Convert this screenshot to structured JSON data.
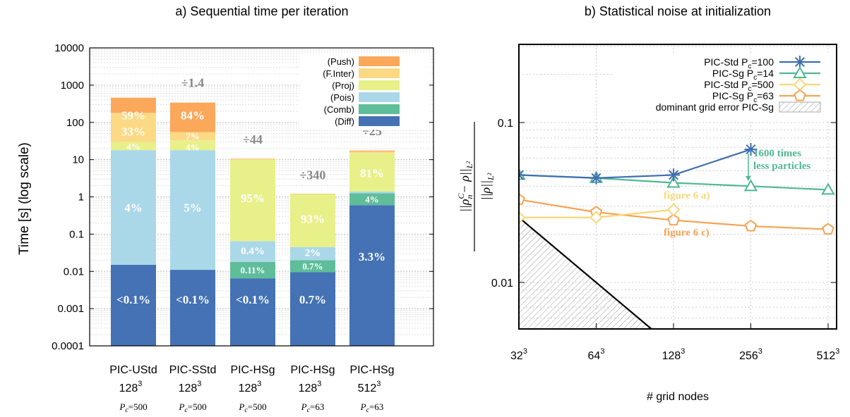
{
  "chart_data": [
    {
      "panel": "a",
      "type": "bar",
      "stacked": true,
      "title": "a) Sequential time per iteration",
      "ylabel": "Time [s] (log scale)",
      "yscale": "log",
      "ylim": [
        0.0001,
        10000
      ],
      "yticks": [
        "0.0001",
        "0.001",
        "0.01",
        "0.1",
        "1",
        "10",
        "100",
        "1000",
        "10000"
      ],
      "categories": [
        {
          "name": "PIC-UStd",
          "size": "128",
          "pc_prefix": "P",
          "pc_sub": "c",
          "pc_value": "=500"
        },
        {
          "name": "PIC-SStd",
          "size": "128",
          "pc_prefix": "P",
          "pc_sub": "c",
          "pc_value": "=500"
        },
        {
          "name": "PIC-HSg",
          "size": "128",
          "pc_prefix": "P",
          "pc_sub": "c",
          "pc_value": "=500"
        },
        {
          "name": "PIC-HSg",
          "size": "128",
          "pc_prefix": "P",
          "pc_sub": "c",
          "pc_value": "=63"
        },
        {
          "name": "PIC-HSg",
          "size": "512",
          "pc_prefix": "P",
          "pc_sub": "c",
          "pc_value": "=63"
        }
      ],
      "size_exponent": "3",
      "series": [
        {
          "name": "(Diff)",
          "color": "#4472b4",
          "tops": [
            0.015,
            0.011,
            0.0065,
            0.0095,
            0.6
          ]
        },
        {
          "name": "(Comb)",
          "color": "#5fbd9a",
          "tops": [
            0.015,
            0.011,
            0.018,
            0.02,
            1.25
          ]
        },
        {
          "name": "(Pois)",
          "color": "#abd8e8",
          "tops": [
            18,
            18,
            0.065,
            0.045,
            1.4
          ]
        },
        {
          "name": "(Proj)",
          "color": "#e8f08a",
          "tops": [
            30,
            33,
            10,
            1.2,
            15
          ]
        },
        {
          "name": "(F.Inter)",
          "color": "#fcd984",
          "tops": [
            180,
            55,
            10.3,
            1.2,
            16.5
          ]
        },
        {
          "name": "(Push)",
          "color": "#fba85a",
          "tops": [
            460,
            340,
            10.6,
            1.22,
            17.5
          ]
        }
      ],
      "segment_labels": [
        {
          "bar": 0,
          "text": "59%",
          "y": 150,
          "size": "large"
        },
        {
          "bar": 0,
          "text": "33%",
          "y": 55,
          "size": "large"
        },
        {
          "bar": 0,
          "text": "4%",
          "y": 23,
          "size": "small"
        },
        {
          "bar": 0,
          "text": "4%",
          "y": 0.5,
          "size": "large"
        },
        {
          "bar": 0,
          "text": "<0.1%",
          "y": 0.0017,
          "size": "large"
        },
        {
          "bar": 1,
          "text": "84%",
          "y": 150,
          "size": "large"
        },
        {
          "bar": 1,
          "text": "7%",
          "y": 43,
          "size": "small"
        },
        {
          "bar": 1,
          "text": "4%",
          "y": 22,
          "size": "small"
        },
        {
          "bar": 1,
          "text": "5%",
          "y": 0.5,
          "size": "large"
        },
        {
          "bar": 1,
          "text": "<0.1%",
          "y": 0.0017,
          "size": "large"
        },
        {
          "bar": 2,
          "text": "95%",
          "y": 0.9,
          "size": "large"
        },
        {
          "bar": 2,
          "text": "0.4%",
          "y": 0.036,
          "size": "medium"
        },
        {
          "bar": 2,
          "text": "0.11%",
          "y": 0.011,
          "size": "small"
        },
        {
          "bar": 2,
          "text": "<0.1%",
          "y": 0.0017,
          "size": "large"
        },
        {
          "bar": 3,
          "text": "93%",
          "y": 0.25,
          "size": "large"
        },
        {
          "bar": 3,
          "text": "2%",
          "y": 0.032,
          "size": "medium"
        },
        {
          "bar": 3,
          "text": "0.7%",
          "y": 0.014,
          "size": "small"
        },
        {
          "bar": 3,
          "text": "0.7%",
          "y": 0.0017,
          "size": "large"
        },
        {
          "bar": 4,
          "text": "81%",
          "y": 4.2,
          "size": "large"
        },
        {
          "bar": 4,
          "text": "4%",
          "y": 0.87,
          "size": "small"
        },
        {
          "bar": 4,
          "text": "3.3%",
          "y": 0.024,
          "size": "large"
        }
      ],
      "speedups": [
        {
          "bar": 1,
          "text": "÷1.4",
          "y": 900
        },
        {
          "bar": 2,
          "text": "÷44",
          "y": 27
        },
        {
          "bar": 3,
          "text": "÷340",
          "y": 3
        },
        {
          "bar": 4,
          "text": "÷25",
          "y": 45
        }
      ],
      "legend_position": "top-right",
      "grid": true
    },
    {
      "panel": "b",
      "type": "line",
      "title": "b) Statistical noise at initialization",
      "xlabel": "# grid nodes",
      "xscale": "log2",
      "yscale": "log",
      "ylim": [
        0.004,
        0.8
      ],
      "x": [
        32,
        64,
        128,
        256,
        512
      ],
      "xtick_labels": [
        {
          "base": "32",
          "exp": "3"
        },
        {
          "base": "64",
          "exp": "3"
        },
        {
          "base": "128",
          "exp": "3"
        },
        {
          "base": "256",
          "exp": "3"
        },
        {
          "base": "512",
          "exp": "3"
        }
      ],
      "ytick_labels": [
        "0.01",
        "0.1"
      ],
      "ylabel_numerator": "||ρ",
      "ylabel_numerator_sup": "C",
      "ylabel_numerator_sub": "n",
      "ylabel_numerator_tail": "− ρ||",
      "ylabel_norm_sub": "L²",
      "ylabel_denominator": "||ρ||",
      "series": [
        {
          "name": "PIC-Std",
          "pc_value": "=100",
          "color": "#3f6fb0",
          "marker": "star",
          "x": [
            32,
            64,
            128,
            256
          ],
          "y": [
            0.047,
            0.045,
            0.047,
            0.068
          ]
        },
        {
          "name": "PIC-Sg",
          "pc_value": "=14",
          "color": "#4fb894",
          "marker": "triangle",
          "x": [
            32,
            64,
            128,
            256,
            512
          ],
          "y": [
            0.047,
            0.045,
            0.042,
            0.04,
            0.038
          ]
        },
        {
          "name": "PIC-Std",
          "pc_value": "=500",
          "color": "#f8d77a",
          "marker": "diamond",
          "x": [
            32,
            64,
            128
          ],
          "y": [
            0.0255,
            0.0255,
            0.0285
          ]
        },
        {
          "name": "PIC-Sg",
          "pc_value": "=63",
          "color": "#f4a455",
          "marker": "pentagon",
          "x": [
            32,
            64,
            128,
            256,
            512
          ],
          "y": [
            0.033,
            0.0275,
            0.0245,
            0.0225,
            0.0215
          ]
        }
      ],
      "legend_pc_prefix": "P",
      "legend_pc_sub": "c",
      "legend_grid_error": "dominant grid error PIC-Sg",
      "annotations": [
        {
          "text": "1600 times",
          "color": "#4fb894"
        },
        {
          "text": "less particles",
          "color": "#4fb894"
        },
        {
          "text": "figure 6 a)",
          "color": "#f8d77a"
        },
        {
          "text": "figure 6 c)",
          "color": "#f4a455"
        }
      ],
      "legend_position": "top-right",
      "grid": true
    }
  ]
}
